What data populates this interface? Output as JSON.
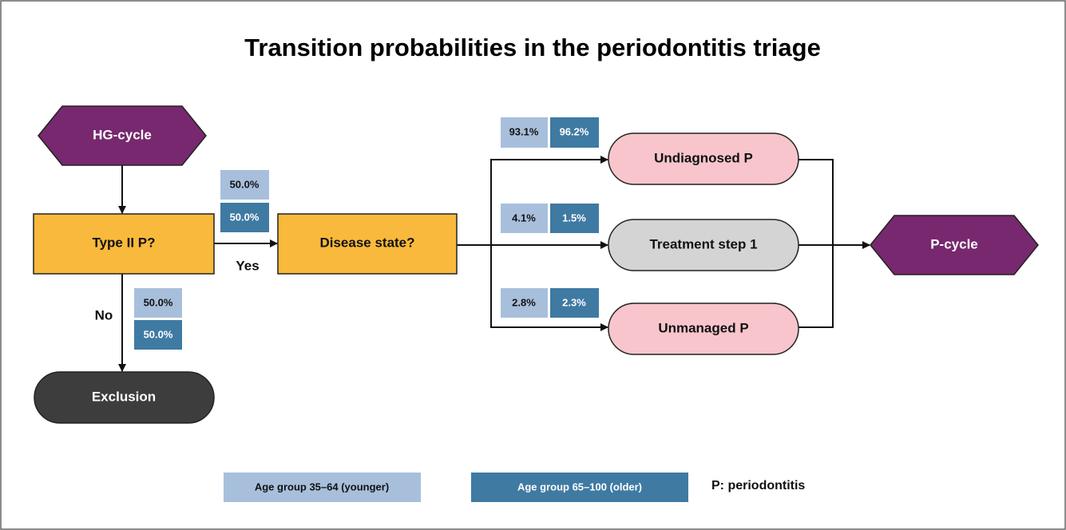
{
  "title": "Transition probabilities in the periodontitis triage",
  "nodes": [
    {
      "label": "HG-cycle"
    },
    {
      "label": "Type II P?"
    },
    {
      "label": "Disease state?"
    },
    {
      "label": "Exclusion"
    },
    {
      "label": "Undiagnosed P"
    },
    {
      "label": "Treatment step 1"
    },
    {
      "label": "Unmanaged P"
    },
    {
      "label": "P-cycle"
    }
  ],
  "edge_labels": {
    "yes": "Yes",
    "no": "No"
  },
  "probabilities": {
    "yes": {
      "younger": "50.0%",
      "older": "50.0%"
    },
    "no": {
      "younger": "50.0%",
      "older": "50.0%"
    },
    "undiagnosed": {
      "younger": "93.1%",
      "older": "96.2%"
    },
    "treatment": {
      "younger": "4.1%",
      "older": "1.5%"
    },
    "unmanaged": {
      "younger": "2.8%",
      "older": "2.3%"
    }
  },
  "legend": {
    "younger": "Age group 35–64 (younger)",
    "older": "Age group 65–100 (older)",
    "note": "P: periodontitis"
  }
}
